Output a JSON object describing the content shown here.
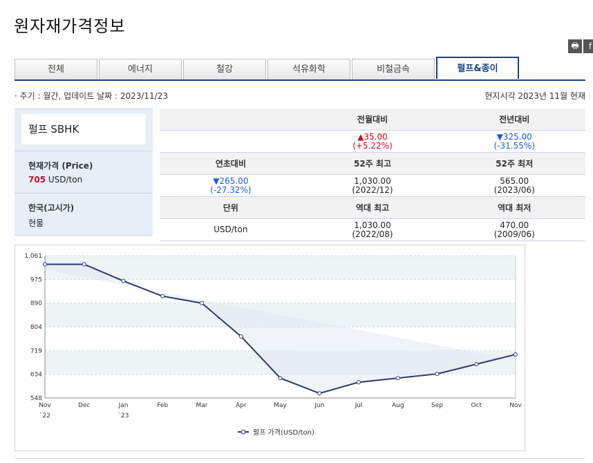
{
  "page": {
    "title": "원자재가격정보"
  },
  "tools": {
    "print_glyph": "🖶",
    "fb_glyph": "f"
  },
  "tabs": [
    "전체",
    "에너지",
    "철강",
    "석유화학",
    "비철금속",
    "펄프&종이"
  ],
  "meta": {
    "left": "· 주기 : 월간, 업데이트 날짜 : 2023/11/23",
    "right": "현지시각 2023년 11월 현재"
  },
  "product": {
    "name": "펄프 SBHK",
    "price_label": "현재가격 (Price)",
    "price_value": "705",
    "price_unit": " USD/ton",
    "region_label": "한국(고시가)",
    "region_value": "현물"
  },
  "stats": {
    "h1": [
      "",
      "전월대비",
      "전년대비"
    ],
    "v1": [
      {
        "a": "",
        "b": ""
      },
      {
        "a": "▲35.00",
        "b": "(+5.22%)"
      },
      {
        "a": "▼325.00",
        "b": "(-31.55%)"
      }
    ],
    "h2": [
      "연초대비",
      "52주 최고",
      "52주 최저"
    ],
    "v2": [
      {
        "a": "▼265.00",
        "b": "(-27.32%)"
      },
      {
        "a": "1,030.00",
        "b": "(2022/12)"
      },
      {
        "a": "565.00",
        "b": "(2023/06)"
      }
    ],
    "h3": [
      "단위",
      "역대 최고",
      "역대 최저"
    ],
    "v3": [
      {
        "a": "USD/ton",
        "b": ""
      },
      {
        "a": "1,030.00",
        "b": "(2022/08)"
      },
      {
        "a": "470.00",
        "b": "(2009/06)"
      }
    ]
  },
  "colors": {
    "accent": "#1c3f86",
    "up": "#d0021b",
    "down": "#1a5bd6",
    "line": "#2b3a67"
  },
  "chart_data": {
    "type": "line",
    "x": [
      "Nov",
      "Dec",
      "Jan",
      "Feb",
      "Mar",
      "Apr",
      "May",
      "Jun",
      "Jul",
      "Aug",
      "Sep",
      "Oct",
      "Nov"
    ],
    "x_year_labels": [
      "`22",
      "",
      "`23",
      "",
      "",
      "",
      "",
      "",
      "",
      "",
      "",
      "",
      ""
    ],
    "series": [
      {
        "name": "펄프 가격(USD/ton)",
        "values": [
          1030,
          1030,
          970,
          915,
          890,
          770,
          620,
          565,
          605,
          620,
          635,
          670,
          705
        ]
      }
    ],
    "yticks": [
      "1,061",
      "975",
      "890",
      "804",
      "719",
      "634",
      "548"
    ],
    "ylim": [
      548,
      1061
    ],
    "grid": true,
    "legend": "bottom-center"
  }
}
